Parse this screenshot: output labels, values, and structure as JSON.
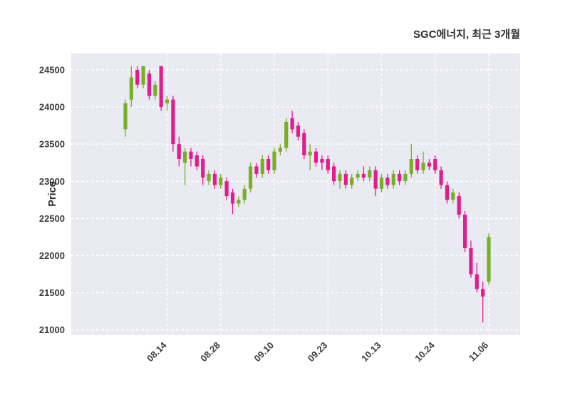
{
  "chart_data": {
    "type": "candlestick",
    "title": "SGC에너지, 최근 3개월",
    "ylabel": "Price",
    "xlabel": "",
    "legend": "none",
    "grid": "dashed-white-both-axes",
    "ylim": [
      20930,
      24720
    ],
    "y_ticks": [
      21000,
      21500,
      22000,
      22500,
      23000,
      23500,
      24000,
      24500
    ],
    "x_ticks": [
      {
        "i": 7,
        "label": "08.14"
      },
      {
        "i": 16,
        "label": "08.28"
      },
      {
        "i": 25,
        "label": "09.10"
      },
      {
        "i": 34,
        "label": "09.23"
      },
      {
        "i": 43,
        "label": "10.13"
      },
      {
        "i": 52,
        "label": "10.24"
      },
      {
        "i": 61,
        "label": "11.06"
      }
    ],
    "candle_format": [
      "open",
      "high",
      "low",
      "close"
    ],
    "candles": [
      [
        23700,
        24100,
        23600,
        24050
      ],
      [
        24100,
        24550,
        24000,
        24400
      ],
      [
        24500,
        24550,
        24250,
        24300
      ],
      [
        24300,
        24550,
        24250,
        24550
      ],
      [
        24450,
        24500,
        24100,
        24150
      ],
      [
        24150,
        24350,
        24100,
        24300
      ],
      [
        24550,
        24550,
        23950,
        24000
      ],
      [
        24050,
        24150,
        23950,
        24100
      ],
      [
        24100,
        24150,
        23400,
        23500
      ],
      [
        23500,
        23600,
        23200,
        23300
      ],
      [
        23250,
        23450,
        22950,
        23400
      ],
      [
        23400,
        23450,
        23200,
        23300
      ],
      [
        23350,
        23400,
        23150,
        23200
      ],
      [
        23300,
        23350,
        22950,
        23050
      ],
      [
        23000,
        23150,
        22950,
        23100
      ],
      [
        23100,
        23150,
        22900,
        22950
      ],
      [
        22950,
        23100,
        22900,
        23050
      ],
      [
        23000,
        23050,
        22750,
        22800
      ],
      [
        22850,
        22900,
        22560,
        22700
      ],
      [
        22700,
        22800,
        22650,
        22750
      ],
      [
        22750,
        22950,
        22700,
        22900
      ],
      [
        22900,
        23250,
        22850,
        23200
      ],
      [
        23200,
        23250,
        23050,
        23100
      ],
      [
        23100,
        23350,
        23050,
        23300
      ],
      [
        23300,
        23350,
        23100,
        23150
      ],
      [
        23150,
        23450,
        23100,
        23400
      ],
      [
        23400,
        23500,
        23350,
        23450
      ],
      [
        23450,
        23850,
        23400,
        23800
      ],
      [
        23850,
        23950,
        23650,
        23700
      ],
      [
        23750,
        23800,
        23550,
        23600
      ],
      [
        23650,
        23700,
        23300,
        23350
      ],
      [
        23350,
        23500,
        23150,
        23400
      ],
      [
        23400,
        23450,
        23200,
        23250
      ],
      [
        23300,
        23350,
        23150,
        23250
      ],
      [
        23300,
        23350,
        23100,
        23150
      ],
      [
        23200,
        23250,
        22950,
        23000
      ],
      [
        23000,
        23150,
        22900,
        23100
      ],
      [
        23100,
        23150,
        22900,
        22950
      ],
      [
        22950,
        23100,
        22900,
        23050
      ],
      [
        23050,
        23150,
        23000,
        23100
      ],
      [
        23100,
        23200,
        23000,
        23050
      ],
      [
        23050,
        23200,
        23000,
        23150
      ],
      [
        23150,
        23200,
        22800,
        22900
      ],
      [
        22900,
        23100,
        22850,
        23050
      ],
      [
        23050,
        23100,
        22900,
        22950
      ],
      [
        22950,
        23150,
        22900,
        23100
      ],
      [
        23100,
        23150,
        22950,
        23000
      ],
      [
        23000,
        23150,
        22950,
        23100
      ],
      [
        23100,
        23500,
        23050,
        23300
      ],
      [
        23300,
        23350,
        23100,
        23150
      ],
      [
        23150,
        23400,
        23100,
        23250
      ],
      [
        23250,
        23300,
        23150,
        23200
      ],
      [
        23300,
        23350,
        23100,
        23150
      ],
      [
        23150,
        23200,
        22900,
        22950
      ],
      [
        22950,
        23000,
        22700,
        22750
      ],
      [
        22750,
        22900,
        22700,
        22850
      ],
      [
        22800,
        22850,
        22500,
        22550
      ],
      [
        22550,
        22600,
        22050,
        22100
      ],
      [
        22100,
        22200,
        21700,
        21750
      ],
      [
        21750,
        21900,
        21500,
        21550
      ],
      [
        21550,
        21650,
        21100,
        21450
      ],
      [
        21650,
        22300,
        21600,
        22250
      ]
    ],
    "colors": {
      "up": "#7aae27",
      "down": "#e31b8c",
      "plot_bg": "#eaeaf2",
      "grid": "#ffffff",
      "text": "#3c3c3c"
    }
  }
}
